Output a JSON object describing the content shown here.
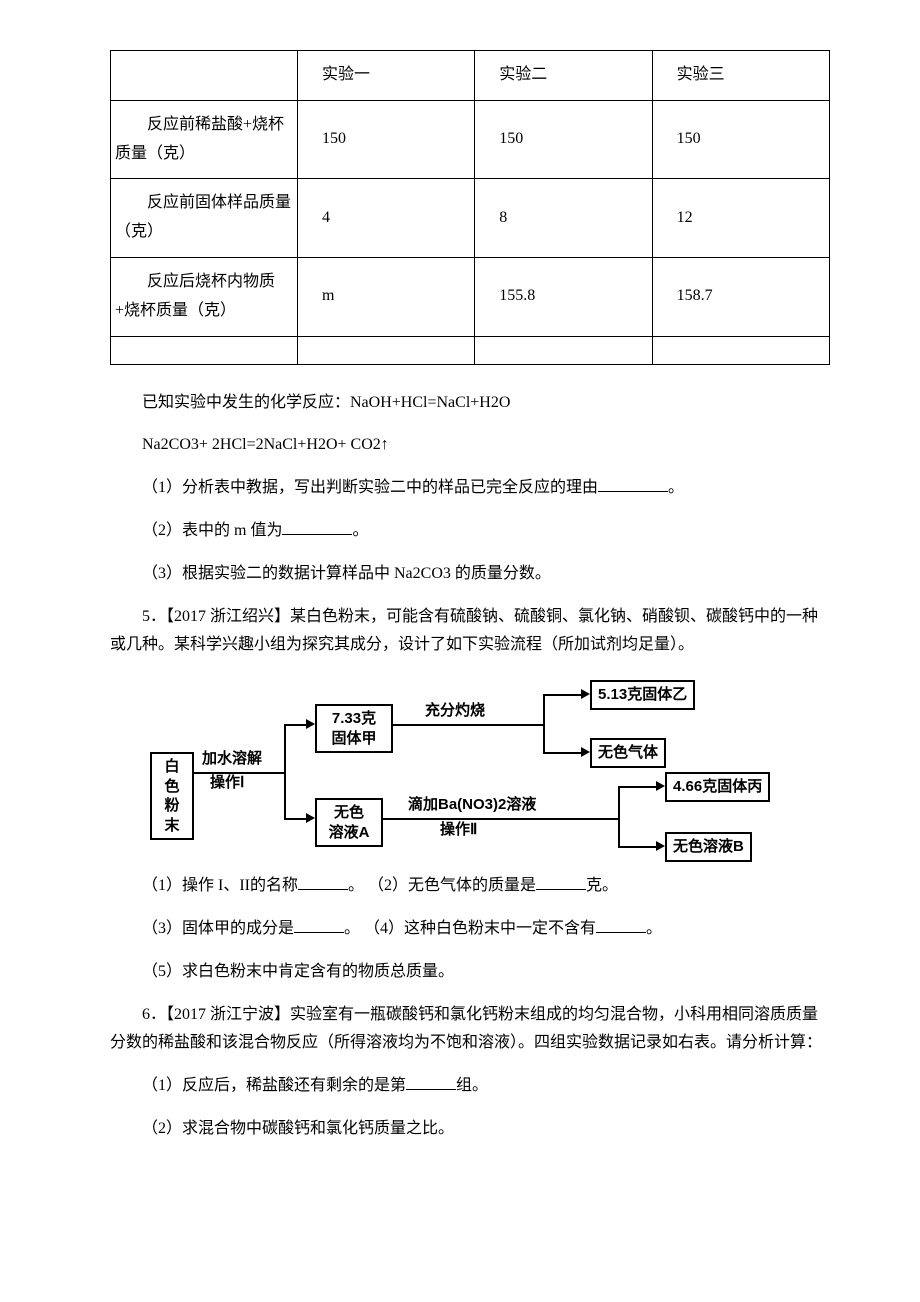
{
  "table": {
    "headers": [
      "",
      "实验一",
      "实验二",
      "实验三"
    ],
    "rows": [
      {
        "label": "反应前稀盐酸+烧杯质量（克）",
        "c1": "150",
        "c2": "150",
        "c3": "150"
      },
      {
        "label": "反应前固体样品质量（克）",
        "c1": "4",
        "c2": "8",
        "c3": "12"
      },
      {
        "label": "反应后烧杯内物质+烧杯质量（克）",
        "c1": "m",
        "c2": "155.8",
        "c3": "158.7"
      }
    ]
  },
  "p1": "已知实验中发生的化学反应：NaOH+HCl=NaCl+H2O",
  "p2": "Na2CO3+ 2HCl=2NaCl+H2O+ CO2↑",
  "p3a": "（1）分析表中教据，写出判断实验二中的样品已完全反应的理由",
  "p3b": "。",
  "p4a": "（2）表中的 m 值为",
  "p4b": "。",
  "p5": "（3）根据实验二的数据计算样品中 Na2CO3 的质量分数。",
  "q5": "5．【2017 浙江绍兴】某白色粉末，可能含有硫酸钠、硫酸铜、氯化钠、硝酸钡、碳酸钙中的一种或几种。某科学兴趣小组为探究其成分，设计了如下实验流程（所加试剂均足量）。",
  "flow": {
    "n_white": "白色\n粉末",
    "l_dissolve": "加水溶解",
    "l_op1": "操作Ⅰ",
    "n_solid_jia": "7.33克\n固体甲",
    "n_sol_a": "无色\n溶液A",
    "l_burn": "充分灼烧",
    "l_ba": "滴加Ba(NO3)2溶液",
    "l_op2": "操作Ⅱ",
    "n_solid_yi": "5.13克固体乙",
    "n_gas": "无色气体",
    "n_solid_bing": "4.66克固体丙",
    "n_sol_b": "无色溶液B"
  },
  "q5_1a": "（1）操作 I、II的名称",
  "q5_1b": "。 （2）无色气体的质量是",
  "q5_1c": "克。",
  "q5_3a": "（3）固体甲的成分是",
  "q5_3b": "。 （4）这种白色粉末中一定不含有",
  "q5_3c": "。",
  "q5_5": "（5）求白色粉末中肯定含有的物质总质量。",
  "q6": "6．【2017 浙江宁波】实验室有一瓶碳酸钙和氯化钙粉末组成的均匀混合物，小科用相同溶质质量分数的稀盐酸和该混合物反应（所得溶液均为不饱和溶液）。四组实验数据记录如右表。请分析计算：",
  "q6_1a": "（1）反应后，稀盐酸还有剩余的是第",
  "q6_1b": "组。",
  "q6_2": "（2）求混合物中碳酸钙和氯化钙质量之比。"
}
